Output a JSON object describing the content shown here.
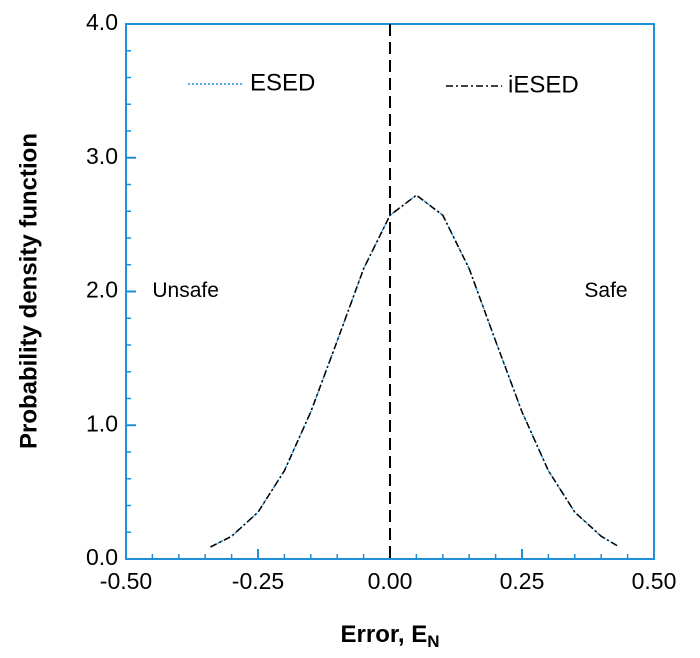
{
  "chart_data": {
    "type": "line",
    "xlabel": {
      "text": "Error, E",
      "subscript": "N"
    },
    "ylabel": "Probability density function",
    "x": [
      -0.34,
      -0.3,
      -0.25,
      -0.2,
      -0.15,
      -0.1,
      -0.05,
      0.0,
      0.05,
      0.1,
      0.15,
      0.2,
      0.25,
      0.3,
      0.35,
      0.4,
      0.43
    ],
    "series": [
      {
        "name": "ESED",
        "color": "#1f8fd6",
        "dash": "2 2",
        "values": [
          0.09,
          0.17,
          0.35,
          0.66,
          1.1,
          1.63,
          2.17,
          2.57,
          2.72,
          2.57,
          2.17,
          1.63,
          1.1,
          0.66,
          0.35,
          0.17,
          0.1
        ]
      },
      {
        "name": "iESED",
        "color": "#000000",
        "dash": "7 3 2 3",
        "values": [
          0.09,
          0.17,
          0.35,
          0.66,
          1.1,
          1.63,
          2.17,
          2.57,
          2.72,
          2.57,
          2.17,
          1.63,
          1.1,
          0.66,
          0.35,
          0.17,
          0.1
        ]
      }
    ],
    "xlim": [
      -0.5,
      0.5
    ],
    "ylim": [
      0,
      4
    ],
    "xticks": [
      {
        "value": -0.5,
        "label": "-0.50"
      },
      {
        "value": -0.25,
        "label": "-0.25"
      },
      {
        "value": 0,
        "label": "0.00"
      },
      {
        "value": 0.25,
        "label": "0.25"
      },
      {
        "value": 0.5,
        "label": "0.50"
      }
    ],
    "yticks": [
      {
        "value": 0,
        "label": "0.0"
      },
      {
        "value": 1,
        "label": "1.0"
      },
      {
        "value": 2,
        "label": "2.0"
      },
      {
        "value": 3,
        "label": "3.0"
      },
      {
        "value": 4,
        "label": "4.0"
      }
    ],
    "xminorticks": [
      -0.45,
      -0.4,
      -0.35,
      -0.3,
      -0.2,
      -0.15,
      -0.1,
      -0.05,
      0.05,
      0.1,
      0.15,
      0.2,
      0.3,
      0.35,
      0.4,
      0.45
    ],
    "yminorticks": [
      0.2,
      0.4,
      0.6,
      0.8,
      1.2,
      1.4,
      1.6,
      1.8,
      2.2,
      2.4,
      2.6,
      2.8,
      3.2,
      3.4,
      3.6,
      3.8
    ],
    "vline": 0,
    "annotations": [
      {
        "text": "Unsafe",
        "x": -0.45,
        "y": 2.0
      },
      {
        "text": "Safe",
        "x": 0.45,
        "y": 2.0
      }
    ],
    "axis_color": "#1f8fd6"
  }
}
